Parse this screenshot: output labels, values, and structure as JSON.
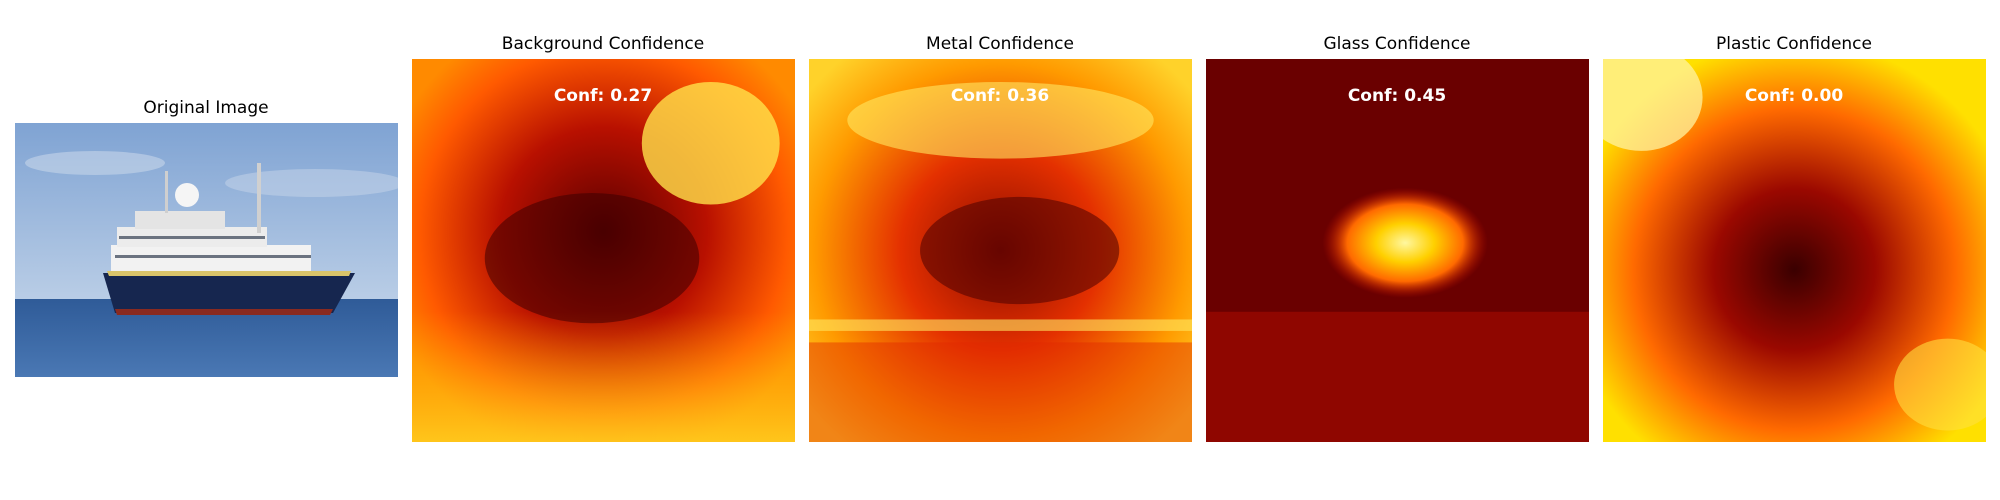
{
  "original": {
    "title": "Original Image"
  },
  "panels": [
    {
      "title": "Background Confidence",
      "conf": "Conf: 0.27"
    },
    {
      "title": "Metal Confidence",
      "conf": "Conf: 0.36"
    },
    {
      "title": "Glass Confidence",
      "conf": "Conf: 0.45"
    },
    {
      "title": "Plastic Confidence",
      "conf": "Conf: 0.00"
    }
  ],
  "colors": {
    "sky": "#8fb0d9",
    "sea": "#3e68a6",
    "hull": "#16264f",
    "heat_dark": "#4a0000",
    "heat_red": "#d81a00",
    "heat_orange": "#ff7a00",
    "heat_yellow": "#ffe400",
    "heat_white": "#fff8c0"
  }
}
